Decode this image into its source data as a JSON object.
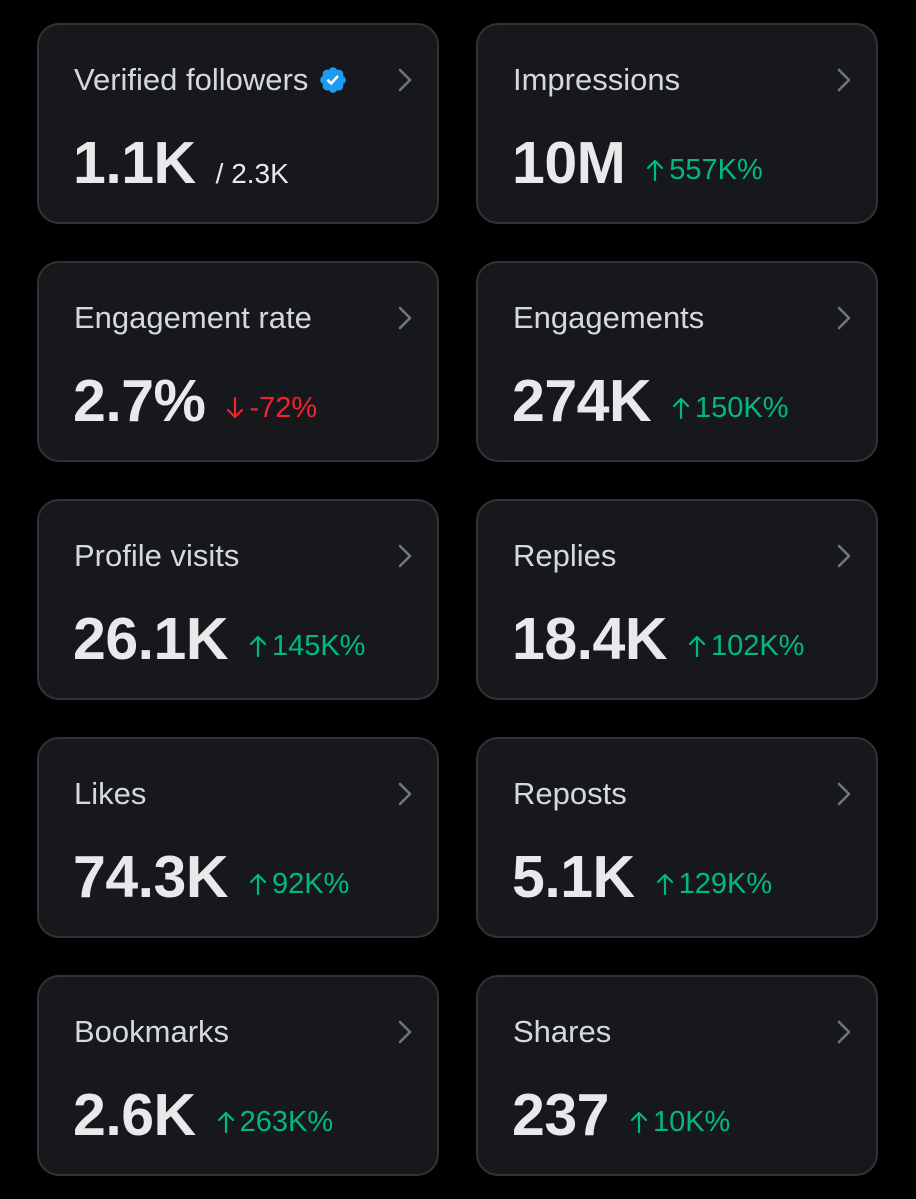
{
  "colors": {
    "background": "#000000",
    "card": "#16181c",
    "border": "#2f3336",
    "positive": "#00ba7c",
    "negative": "#f4212e",
    "verified": "#1d9bf0"
  },
  "cards": [
    {
      "title": "Verified followers",
      "value": "1.1K",
      "total": "/ 2.3K",
      "badge": "verified-badge-icon"
    },
    {
      "title": "Impressions",
      "value": "10M",
      "delta": "557K%",
      "direction": "up"
    },
    {
      "title": "Engagement rate",
      "value": "2.7%",
      "delta": "-72%",
      "direction": "down"
    },
    {
      "title": "Engagements",
      "value": "274K",
      "delta": "150K%",
      "direction": "up"
    },
    {
      "title": "Profile visits",
      "value": "26.1K",
      "delta": "145K%",
      "direction": "up"
    },
    {
      "title": "Replies",
      "value": "18.4K",
      "delta": "102K%",
      "direction": "up"
    },
    {
      "title": "Likes",
      "value": "74.3K",
      "delta": "92K%",
      "direction": "up"
    },
    {
      "title": "Reposts",
      "value": "5.1K",
      "delta": "129K%",
      "direction": "up"
    },
    {
      "title": "Bookmarks",
      "value": "2.6K",
      "delta": "263K%",
      "direction": "up"
    },
    {
      "title": "Shares",
      "value": "237",
      "delta": "10K%",
      "direction": "up"
    }
  ]
}
